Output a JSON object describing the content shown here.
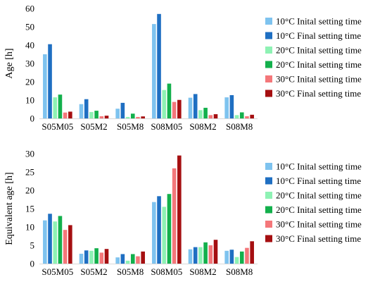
{
  "chart_data": [
    {
      "type": "bar",
      "ylabel": "Age [h]",
      "xlabel": "",
      "ylim": [
        0,
        60
      ],
      "yticks": [
        0,
        10,
        20,
        30,
        40,
        50,
        60
      ],
      "grid": false,
      "legend_position": "right",
      "categories": [
        "S05M05",
        "S05M2",
        "S05M8",
        "S08M05",
        "S08M2",
        "S08M8"
      ],
      "series": [
        {
          "name": "10°C Inital setting time",
          "color": "#7ec3ef",
          "values": [
            35,
            7.8,
            5.3,
            51.5,
            11.3,
            11.5
          ]
        },
        {
          "name": "10°C Final setting time",
          "color": "#1f6fc2",
          "values": [
            40.5,
            10.5,
            8.5,
            57,
            13.3,
            12.7
          ]
        },
        {
          "name": "20°C Inital setting time",
          "color": "#8ef2b4",
          "values": [
            11.5,
            3.5,
            0.8,
            15.5,
            4.5,
            1.8
          ]
        },
        {
          "name": "20°C Inital setting time",
          "color": "#13b04c",
          "values": [
            13,
            4.2,
            2.6,
            19,
            5.8,
            3.3
          ]
        },
        {
          "name": "30°C Inital setting time",
          "color": "#f4777a",
          "values": [
            3.2,
            1.2,
            0.8,
            9,
            1.8,
            1.2
          ]
        },
        {
          "name": "30°C Final setting time",
          "color": "#a50f11",
          "values": [
            3.7,
            1.5,
            1.1,
            10.1,
            2.3,
            2
          ]
        }
      ]
    },
    {
      "type": "bar",
      "ylabel": "Equivalent age [h]",
      "xlabel": "",
      "ylim": [
        0,
        30
      ],
      "yticks": [
        0,
        5,
        10,
        15,
        20,
        25,
        30
      ],
      "grid": false,
      "legend_position": "right",
      "categories": [
        "S05M05",
        "S05M2",
        "S05M8",
        "S08M05",
        "S08M2",
        "S08M8"
      ],
      "series": [
        {
          "name": "10°C Inital setting time",
          "color": "#7ec3ef",
          "values": [
            11.8,
            2.7,
            1.7,
            16.8,
            3.9,
            3.5
          ]
        },
        {
          "name": "10°C Final setting time",
          "color": "#1f6fc2",
          "values": [
            13.6,
            3.6,
            2.6,
            18.4,
            4.5,
            3.8
          ]
        },
        {
          "name": "20°C Inital setting time",
          "color": "#8ef2b4",
          "values": [
            11.5,
            3.5,
            0.8,
            15.5,
            4.5,
            1.8
          ]
        },
        {
          "name": "20°C Inital setting time",
          "color": "#13b04c",
          "values": [
            13,
            4.2,
            2.6,
            19,
            5.8,
            3.3
          ]
        },
        {
          "name": "30°C Inital setting time",
          "color": "#f4777a",
          "values": [
            9.2,
            3,
            2,
            26,
            5,
            4.3
          ]
        },
        {
          "name": "30°C Final setting time",
          "color": "#a50f11",
          "values": [
            10.5,
            4,
            3.3,
            29.5,
            6.5,
            6.1
          ]
        }
      ]
    }
  ]
}
